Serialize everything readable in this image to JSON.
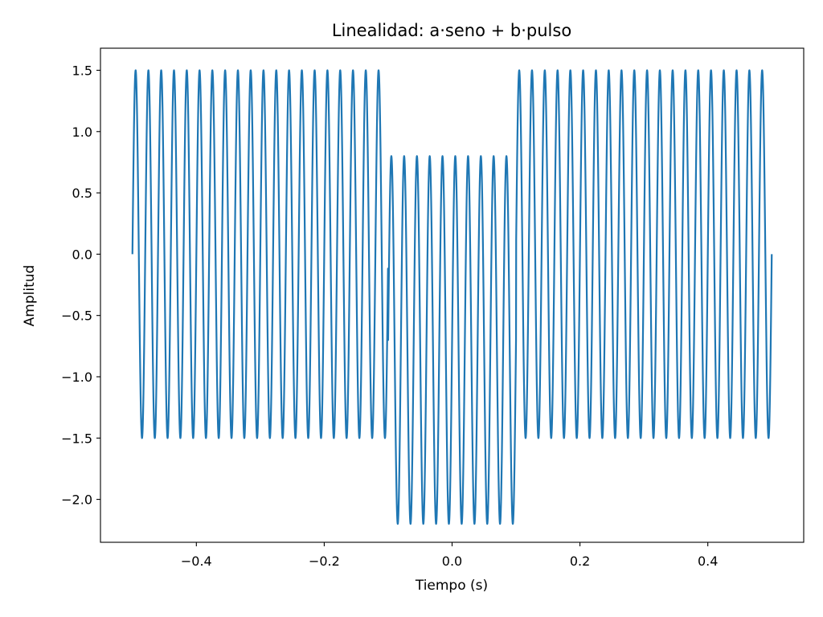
{
  "chart_data": {
    "type": "line",
    "title": "Linealidad: a·seno + b·pulso",
    "xlabel": "Tiempo (s)",
    "ylabel": "Amplitud",
    "xlim": [
      -0.55,
      0.55
    ],
    "ylim": [
      -2.35,
      1.68
    ],
    "x_ticks": [
      -0.4,
      -0.2,
      0.0,
      0.2,
      0.4
    ],
    "x_tick_labels": [
      "−0.4",
      "−0.2",
      "0.0",
      "0.2",
      "0.4"
    ],
    "y_ticks": [
      1.5,
      1.0,
      0.5,
      0.0,
      -0.5,
      -1.0,
      -1.5,
      -2.0
    ],
    "y_tick_labels": [
      "1.5",
      "1.0",
      "0.5",
      "0.0",
      "−0.5",
      "−1.0",
      "−1.5",
      "−2.0"
    ],
    "grid": false,
    "series": [
      {
        "color": "#1f77b4",
        "x_range": [
          -0.5,
          0.5
        ],
        "sine_amplitude": 1.5,
        "sine_frequency_hz": 50,
        "pulse_interval": [
          -0.1,
          0.1
        ],
        "pulse_value": -0.7,
        "samples": 4001
      }
    ]
  }
}
